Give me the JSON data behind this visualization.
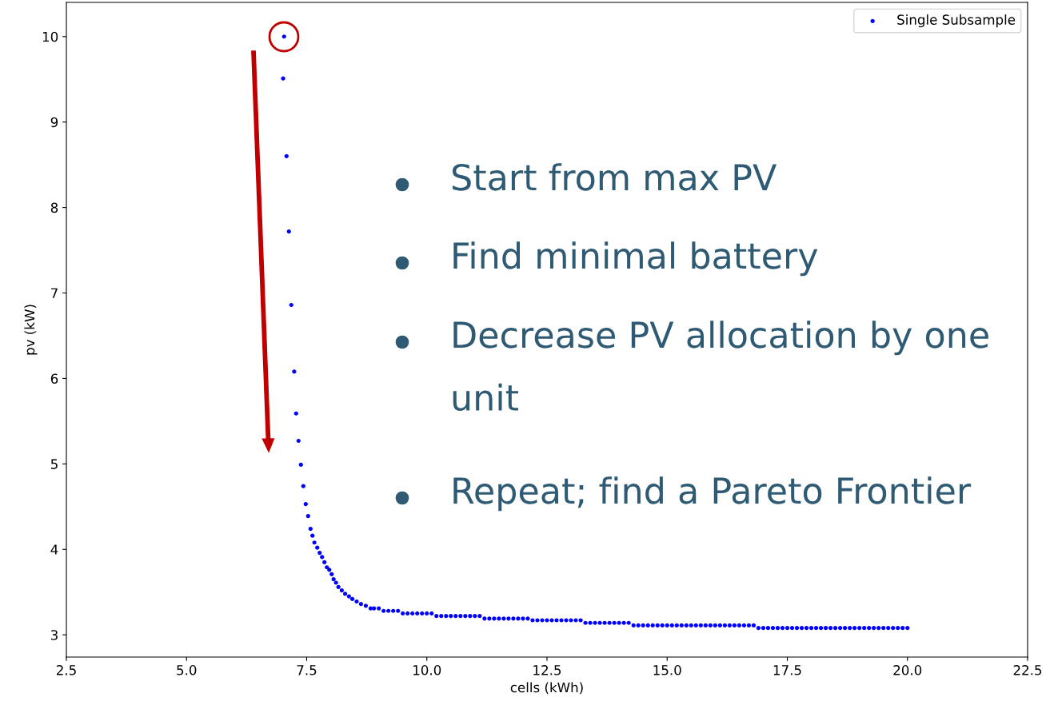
{
  "chart_data": {
    "type": "scatter",
    "xlabel": "cells (kWh)",
    "ylabel": "pv (kW)",
    "xlim": [
      2.5,
      22.5
    ],
    "ylim": [
      2.74,
      10.4
    ],
    "xticks": [
      {
        "value": 2.5,
        "label": "2.5"
      },
      {
        "value": 5.0,
        "label": "5.0"
      },
      {
        "value": 7.5,
        "label": "7.5"
      },
      {
        "value": 10.0,
        "label": "10.0"
      },
      {
        "value": 12.5,
        "label": "12.5"
      },
      {
        "value": 15.0,
        "label": "15.0"
      },
      {
        "value": 17.5,
        "label": "17.5"
      },
      {
        "value": 20.0,
        "label": "20.0"
      },
      {
        "value": 22.5,
        "label": "22.5"
      }
    ],
    "yticks": [
      3,
      4,
      5,
      6,
      7,
      8,
      9,
      10
    ],
    "grid": false,
    "legend": "top right",
    "marker": "circle",
    "annotations": [
      "Start from max PV",
      "Find minimal battery",
      "Decrease PV allocation by one\nunit",
      "Repeat; find a Pareto Frontier"
    ],
    "series": [
      {
        "name": "Single Subsample",
        "color": "#0000ff",
        "x": [
          7.03,
          7.01,
          7.08,
          7.13,
          7.18,
          7.24,
          7.28,
          7.33,
          7.38,
          7.43,
          7.48,
          7.53,
          7.58,
          7.62,
          7.66,
          7.72,
          7.77,
          7.82,
          7.87,
          7.92,
          7.97,
          8.02,
          8.06,
          8.11,
          8.16,
          8.23,
          8.3,
          8.38,
          8.45,
          8.54,
          8.63,
          8.73,
          8.83,
          8.9,
          9.0,
          9.1,
          9.2,
          9.3,
          9.4,
          9.5,
          9.6,
          9.7,
          9.8,
          9.9,
          10.0,
          10.1,
          10.2,
          10.3,
          10.4,
          10.5,
          10.6,
          10.7,
          10.8,
          10.9,
          11.0,
          11.1,
          11.2,
          11.3,
          11.4,
          11.5,
          11.6,
          11.7,
          11.8,
          11.9,
          12.0,
          12.1,
          12.2,
          12.3,
          12.4,
          12.5,
          12.6,
          12.7,
          12.8,
          12.9,
          13.0,
          13.1,
          13.2,
          13.3,
          13.4,
          13.5,
          13.6,
          13.7,
          13.8,
          13.9,
          14.0,
          14.1,
          14.2,
          14.3,
          14.4,
          14.5,
          14.6,
          14.7,
          14.8,
          14.9,
          15.0,
          15.1,
          15.2,
          15.3,
          15.4,
          15.5,
          15.6,
          15.7,
          15.8,
          15.9,
          16.0,
          16.1,
          16.2,
          16.3,
          16.4,
          16.5,
          16.6,
          16.7,
          16.8,
          16.9,
          17.0,
          17.1,
          17.2,
          17.3,
          17.4,
          17.5,
          17.6,
          17.7,
          17.8,
          17.9,
          18.0,
          18.1,
          18.2,
          18.3,
          18.4,
          18.5,
          18.6,
          18.7,
          18.8,
          18.9,
          19.0,
          19.1,
          19.2,
          19.3,
          19.4,
          19.5,
          19.6,
          19.7,
          19.8,
          19.9,
          20.0
        ],
        "values": [
          10.0,
          9.51,
          8.6,
          7.72,
          6.86,
          6.08,
          5.59,
          5.27,
          4.99,
          4.74,
          4.53,
          4.39,
          4.24,
          4.16,
          4.08,
          4.02,
          3.96,
          3.91,
          3.85,
          3.79,
          3.76,
          3.71,
          3.65,
          3.61,
          3.56,
          3.52,
          3.48,
          3.45,
          3.42,
          3.39,
          3.36,
          3.34,
          3.31,
          3.31,
          3.31,
          3.28,
          3.28,
          3.28,
          3.28,
          3.25,
          3.25,
          3.25,
          3.25,
          3.25,
          3.25,
          3.25,
          3.22,
          3.22,
          3.22,
          3.22,
          3.22,
          3.22,
          3.22,
          3.22,
          3.22,
          3.22,
          3.19,
          3.19,
          3.19,
          3.19,
          3.19,
          3.19,
          3.19,
          3.19,
          3.19,
          3.19,
          3.17,
          3.17,
          3.17,
          3.17,
          3.17,
          3.17,
          3.17,
          3.17,
          3.17,
          3.17,
          3.17,
          3.14,
          3.14,
          3.14,
          3.14,
          3.14,
          3.14,
          3.14,
          3.14,
          3.14,
          3.14,
          3.11,
          3.11,
          3.11,
          3.11,
          3.11,
          3.11,
          3.11,
          3.11,
          3.11,
          3.11,
          3.11,
          3.11,
          3.11,
          3.11,
          3.11,
          3.11,
          3.11,
          3.11,
          3.11,
          3.11,
          3.11,
          3.11,
          3.11,
          3.11,
          3.11,
          3.11,
          3.08,
          3.08,
          3.08,
          3.08,
          3.08,
          3.08,
          3.08,
          3.08,
          3.08,
          3.08,
          3.08,
          3.08,
          3.08,
          3.08,
          3.08,
          3.08,
          3.08,
          3.08,
          3.08,
          3.08,
          3.08,
          3.08,
          3.08,
          3.08,
          3.08,
          3.08,
          3.08,
          3.08,
          3.08,
          3.08,
          3.08,
          3.08
        ]
      }
    ]
  }
}
